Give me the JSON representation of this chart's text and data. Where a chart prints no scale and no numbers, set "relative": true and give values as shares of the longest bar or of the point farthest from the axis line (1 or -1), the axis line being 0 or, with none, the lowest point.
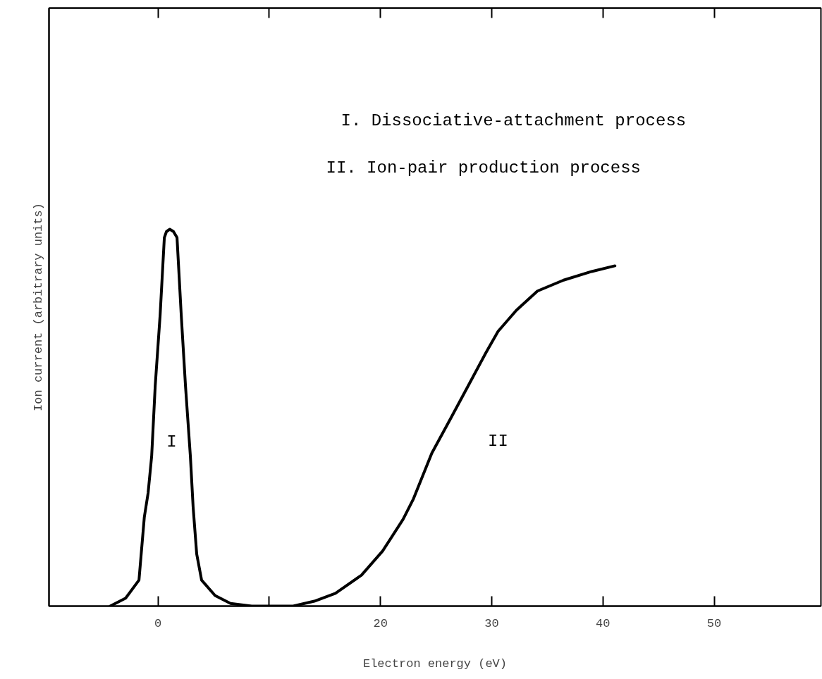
{
  "chart_data": {
    "type": "line",
    "relative": true,
    "xlabel": "Electron energy (eV)",
    "ylabel": "Ion current (arbitrary units)",
    "xlim": [
      -9.8,
      59.6
    ],
    "xticks": [
      0,
      {
        "value": 10,
        "label": null
      },
      20,
      30,
      40,
      50
    ],
    "grid": false,
    "marker": "none",
    "line_style": "solid",
    "series": [
      {
        "color": "#000000",
        "x": [
          -4.3,
          -2.91,
          -1.71,
          -1.23,
          -0.89,
          -0.57,
          -0.25,
          0.19,
          0.57,
          0.76,
          1.06,
          1.39,
          1.71,
          2.09,
          2.47,
          2.91,
          3.16,
          3.48,
          3.92,
          5.13,
          6.52,
          8.42,
          12.15,
          14.05,
          15.95,
          18.29,
          20.19,
          22.03,
          22.97,
          24.62,
          26.33,
          28.04,
          29.49,
          30.57,
          32.22,
          34.11,
          36.46,
          38.99,
          41.08
        ],
        "values": [
          0,
          0.021,
          0.069,
          0.236,
          0.3,
          0.398,
          0.585,
          0.772,
          0.978,
          0.994,
          1.0,
          0.994,
          0.978,
          0.772,
          0.585,
          0.398,
          0.262,
          0.138,
          0.069,
          0.028,
          0.007,
          0,
          0,
          0.013,
          0.034,
          0.082,
          0.146,
          0.23,
          0.285,
          0.406,
          0.499,
          0.593,
          0.673,
          0.729,
          0.785,
          0.836,
          0.865,
          0.888,
          0.903
        ]
      }
    ],
    "annotations": [
      "I",
      "II",
      "I.  Dissociative-attachment process",
      "II.  Ion-pair production process"
    ]
  }
}
